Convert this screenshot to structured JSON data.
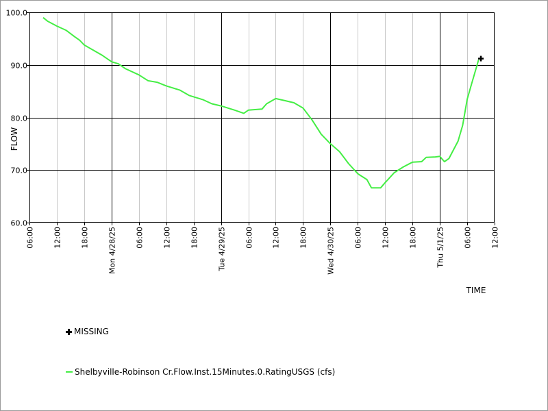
{
  "chart_data": {
    "type": "line",
    "title": "",
    "xlabel": "TIME",
    "ylabel": "FLOW",
    "ylim": [
      60,
      100
    ],
    "xlim": [
      "2025-04-27 06:00",
      "2025-05-01 12:00"
    ],
    "y_ticks": [
      "60.0",
      "70.0",
      "80.0",
      "90.0",
      "100.0"
    ],
    "x_ticks": [
      {
        "t": "2025-04-27 06:00",
        "label": "06:00"
      },
      {
        "t": "2025-04-27 12:00",
        "label": "12:00"
      },
      {
        "t": "2025-04-27 18:00",
        "label": "18:00"
      },
      {
        "t": "2025-04-28 00:00",
        "label": "Mon 4/28/25"
      },
      {
        "t": "2025-04-28 06:00",
        "label": "06:00"
      },
      {
        "t": "2025-04-28 12:00",
        "label": "12:00"
      },
      {
        "t": "2025-04-28 18:00",
        "label": "18:00"
      },
      {
        "t": "2025-04-29 00:00",
        "label": "Tue 4/29/25"
      },
      {
        "t": "2025-04-29 06:00",
        "label": "06:00"
      },
      {
        "t": "2025-04-29 12:00",
        "label": "12:00"
      },
      {
        "t": "2025-04-29 18:00",
        "label": "18:00"
      },
      {
        "t": "2025-04-30 00:00",
        "label": "Wed 4/30/25"
      },
      {
        "t": "2025-04-30 06:00",
        "label": "06:00"
      },
      {
        "t": "2025-04-30 12:00",
        "label": "12:00"
      },
      {
        "t": "2025-04-30 18:00",
        "label": "18:00"
      },
      {
        "t": "2025-05-01 00:00",
        "label": "Thu 5/1/25"
      },
      {
        "t": "2025-05-01 06:00",
        "label": "06:00"
      },
      {
        "t": "2025-05-01 12:00",
        "label": "12:00"
      }
    ],
    "grid": true,
    "legend_position": "bottom-left",
    "series": [
      {
        "name": "Shelbyville-Robinson Cr.Flow.Inst.15Minutes.0.RatingUSGS (cfs)",
        "color": "#44ee44",
        "points": [
          [
            "2025-04-27 09:00",
            99.0
          ],
          [
            "2025-04-27 10:00",
            98.3
          ],
          [
            "2025-04-27 12:00",
            97.4
          ],
          [
            "2025-04-27 14:00",
            96.6
          ],
          [
            "2025-04-27 16:00",
            95.3
          ],
          [
            "2025-04-27 17:00",
            94.7
          ],
          [
            "2025-04-27 18:00",
            93.8
          ],
          [
            "2025-04-27 20:00",
            92.8
          ],
          [
            "2025-04-27 22:00",
            91.8
          ],
          [
            "2025-04-28 00:00",
            90.6
          ],
          [
            "2025-04-28 01:30",
            90.2
          ],
          [
            "2025-04-28 03:00",
            89.3
          ],
          [
            "2025-04-28 06:00",
            88.1
          ],
          [
            "2025-04-28 08:00",
            87.0
          ],
          [
            "2025-04-28 10:00",
            86.7
          ],
          [
            "2025-04-28 12:00",
            86.0
          ],
          [
            "2025-04-28 15:00",
            85.2
          ],
          [
            "2025-04-28 17:00",
            84.2
          ],
          [
            "2025-04-28 20:00",
            83.4
          ],
          [
            "2025-04-28 22:00",
            82.6
          ],
          [
            "2025-04-29 00:00",
            82.2
          ],
          [
            "2025-04-29 03:00",
            81.4
          ],
          [
            "2025-04-29 05:00",
            80.8
          ],
          [
            "2025-04-29 06:00",
            81.4
          ],
          [
            "2025-04-29 09:00",
            81.6
          ],
          [
            "2025-04-29 10:00",
            82.6
          ],
          [
            "2025-04-29 12:00",
            83.6
          ],
          [
            "2025-04-29 14:00",
            83.2
          ],
          [
            "2025-04-29 16:00",
            82.8
          ],
          [
            "2025-04-29 18:00",
            81.8
          ],
          [
            "2025-04-29 20:00",
            79.5
          ],
          [
            "2025-04-29 22:00",
            76.8
          ],
          [
            "2025-04-30 00:00",
            75.0
          ],
          [
            "2025-04-30 02:00",
            73.5
          ],
          [
            "2025-04-30 04:00",
            71.2
          ],
          [
            "2025-04-30 06:00",
            69.3
          ],
          [
            "2025-04-30 08:00",
            68.2
          ],
          [
            "2025-04-30 09:00",
            66.6
          ],
          [
            "2025-04-30 11:00",
            66.6
          ],
          [
            "2025-04-30 12:00",
            67.6
          ],
          [
            "2025-04-30 14:00",
            69.5
          ],
          [
            "2025-04-30 16:00",
            70.6
          ],
          [
            "2025-04-30 18:00",
            71.5
          ],
          [
            "2025-04-30 20:00",
            71.6
          ],
          [
            "2025-04-30 21:00",
            72.4
          ],
          [
            "2025-04-30 23:00",
            72.5
          ],
          [
            "2025-05-01 00:00",
            72.6
          ],
          [
            "2025-05-01 01:00",
            71.6
          ],
          [
            "2025-05-01 02:00",
            72.2
          ],
          [
            "2025-05-01 04:00",
            75.5
          ],
          [
            "2025-05-01 05:00",
            78.5
          ],
          [
            "2025-05-01 06:00",
            83.5
          ],
          [
            "2025-05-01 07:00",
            86.5
          ],
          [
            "2025-05-01 08:00",
            89.5
          ],
          [
            "2025-05-01 08:30",
            91.0
          ]
        ]
      }
    ],
    "missing_points": [
      [
        "2025-05-01 09:00",
        91.2
      ]
    ]
  },
  "legend": {
    "missing_label": "MISSING",
    "series_label": "Shelbyville-Robinson Cr.Flow.Inst.15Minutes.0.RatingUSGS (cfs)"
  }
}
